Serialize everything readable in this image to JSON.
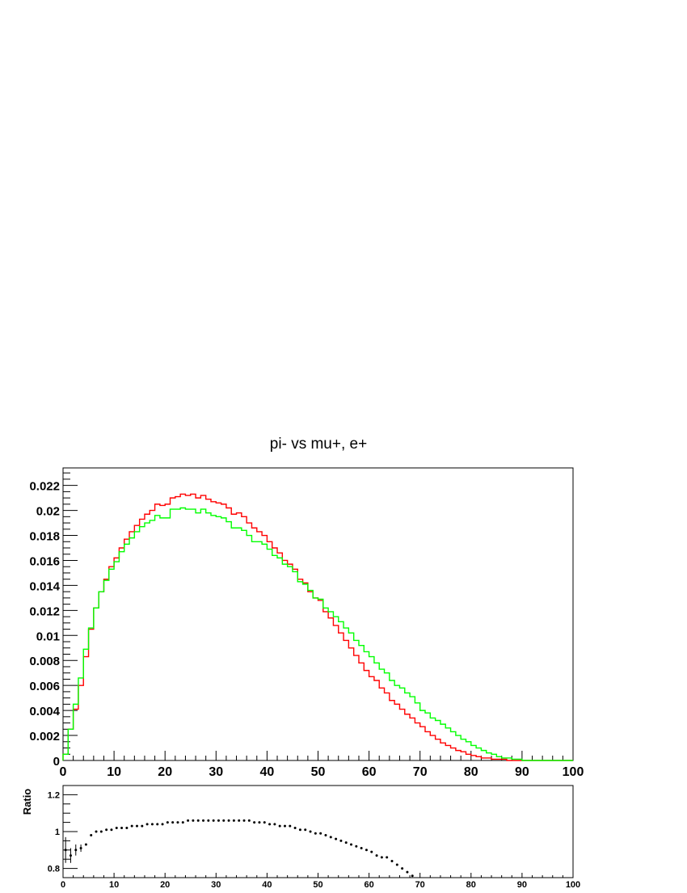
{
  "chart_data": [
    {
      "type": "line",
      "title": "pi- vs mu+, e+",
      "xlabel": "",
      "ylabel": "",
      "xlim": [
        0,
        100
      ],
      "ylim": [
        0,
        0.0234
      ],
      "grid": false,
      "x_tick_labels": [
        "0",
        "10",
        "20",
        "30",
        "40",
        "50",
        "60",
        "70",
        "80",
        "90",
        "100"
      ],
      "y_tick_labels": [
        "0",
        "0.002",
        "0.004",
        "0.006",
        "0.008",
        "0.01",
        "0.012",
        "0.014",
        "0.016",
        "0.018",
        "0.02",
        "0.022"
      ],
      "bin_edges_start": 0,
      "bin_width": 1,
      "series": [
        {
          "color": "#ff0000",
          "values": [
            0.0005,
            0.0025,
            0.0041,
            0.006,
            0.0083,
            0.0105,
            0.0122,
            0.0135,
            0.0145,
            0.0155,
            0.0162,
            0.017,
            0.0177,
            0.0183,
            0.0188,
            0.0193,
            0.0197,
            0.02,
            0.0205,
            0.0204,
            0.0205,
            0.021,
            0.0211,
            0.0213,
            0.0212,
            0.0213,
            0.021,
            0.0212,
            0.0209,
            0.0207,
            0.0206,
            0.0205,
            0.0202,
            0.0197,
            0.0198,
            0.0195,
            0.019,
            0.0186,
            0.0183,
            0.018,
            0.0175,
            0.017,
            0.0166,
            0.016,
            0.0157,
            0.0153,
            0.0145,
            0.0142,
            0.0135,
            0.013,
            0.0128,
            0.0119,
            0.0114,
            0.0108,
            0.0102,
            0.0096,
            0.009,
            0.0084,
            0.0078,
            0.0072,
            0.0067,
            0.0064,
            0.0058,
            0.0054,
            0.0048,
            0.0045,
            0.0041,
            0.0037,
            0.0034,
            0.003,
            0.0027,
            0.0023,
            0.002,
            0.0017,
            0.0014,
            0.0012,
            0.001,
            0.0008,
            0.0007,
            0.0005,
            0.0004,
            0.0003,
            0.0002,
            0.0002,
            0.0001,
            0.0001,
            0.0001,
            0,
            0,
            0,
            0,
            0,
            0,
            0,
            0,
            0,
            0,
            0,
            0,
            0
          ]
        },
        {
          "color": "#00ff00",
          "values": [
            0.0005,
            0.0025,
            0.0045,
            0.0066,
            0.0089,
            0.0106,
            0.0122,
            0.0135,
            0.0144,
            0.0153,
            0.0159,
            0.0167,
            0.0173,
            0.0178,
            0.0183,
            0.0187,
            0.019,
            0.0192,
            0.0196,
            0.0194,
            0.0194,
            0.0201,
            0.0201,
            0.0202,
            0.0201,
            0.0201,
            0.0198,
            0.0201,
            0.0198,
            0.0196,
            0.0195,
            0.0194,
            0.0191,
            0.0186,
            0.0186,
            0.0184,
            0.018,
            0.0175,
            0.0175,
            0.0173,
            0.0169,
            0.0164,
            0.0162,
            0.0157,
            0.0155,
            0.0151,
            0.0143,
            0.0141,
            0.0136,
            0.013,
            0.0129,
            0.0122,
            0.0119,
            0.0115,
            0.0111,
            0.0106,
            0.0102,
            0.0096,
            0.0092,
            0.0087,
            0.0083,
            0.0078,
            0.0073,
            0.007,
            0.0064,
            0.006,
            0.0058,
            0.0054,
            0.0051,
            0.0046,
            0.004,
            0.0038,
            0.0034,
            0.0032,
            0.0029,
            0.0026,
            0.0023,
            0.002,
            0.0017,
            0.0015,
            0.0012,
            0.001,
            0.0008,
            0.0006,
            0.0005,
            0.0003,
            0.0002,
            0.0002,
            0.0001,
            0.0001,
            0,
            0,
            0,
            0,
            0,
            0,
            0,
            0,
            0,
            0
          ]
        }
      ]
    },
    {
      "type": "scatter",
      "title": "",
      "xlabel": "",
      "ylabel": "Ratio",
      "xlim": [
        0,
        100
      ],
      "ylim": [
        0.75,
        1.25
      ],
      "grid": false,
      "x_tick_labels": [
        "0",
        "10",
        "20",
        "30",
        "40",
        "50",
        "60",
        "70",
        "80",
        "90",
        "100"
      ],
      "y_tick_labels": [
        "0.8",
        "1",
        "1.2"
      ],
      "series": [
        {
          "color": "#000000",
          "x": [
            0.5,
            1.5,
            2.5,
            3.5,
            4.5,
            5.5,
            6.5,
            7.5,
            8.5,
            9.5,
            10.5,
            11.5,
            12.5,
            13.5,
            14.5,
            15.5,
            16.5,
            17.5,
            18.5,
            19.5,
            20.5,
            21.5,
            22.5,
            23.5,
            24.5,
            25.5,
            26.5,
            27.5,
            28.5,
            29.5,
            30.5,
            31.5,
            32.5,
            33.5,
            34.5,
            35.5,
            36.5,
            37.5,
            38.5,
            39.5,
            40.5,
            41.5,
            42.5,
            43.5,
            44.5,
            45.5,
            46.5,
            47.5,
            48.5,
            49.5,
            50.5,
            51.5,
            52.5,
            53.5,
            54.5,
            55.5,
            56.5,
            57.5,
            58.5,
            59.5,
            60.5,
            61.5,
            62.5,
            63.5,
            64.5,
            65.5,
            66.5,
            67.5,
            68.5
          ],
          "y": [
            0.9,
            0.87,
            0.9,
            0.91,
            0.93,
            0.98,
            1.0,
            1.0,
            1.01,
            1.01,
            1.02,
            1.02,
            1.02,
            1.03,
            1.03,
            1.03,
            1.04,
            1.04,
            1.04,
            1.04,
            1.05,
            1.05,
            1.05,
            1.05,
            1.06,
            1.06,
            1.06,
            1.06,
            1.06,
            1.06,
            1.06,
            1.06,
            1.06,
            1.06,
            1.06,
            1.06,
            1.06,
            1.05,
            1.05,
            1.05,
            1.04,
            1.04,
            1.03,
            1.03,
            1.03,
            1.02,
            1.01,
            1.01,
            1.0,
            0.99,
            0.99,
            0.98,
            0.97,
            0.96,
            0.95,
            0.94,
            0.93,
            0.92,
            0.91,
            0.9,
            0.89,
            0.87,
            0.86,
            0.86,
            0.84,
            0.82,
            0.8,
            0.78,
            0.76
          ],
          "err": [
            0.07,
            0.04,
            0.03,
            0.02,
            0.01,
            0.01,
            0.01,
            0.01,
            0.01,
            0.01,
            0.01,
            0.01,
            0.01,
            0.01,
            0.01,
            0.01,
            0.01,
            0.01,
            0.01,
            0.01,
            0.01,
            0.01,
            0.01,
            0.01,
            0.01,
            0.01,
            0.01,
            0.01,
            0.01,
            0.01,
            0.01,
            0.01,
            0.01,
            0.01,
            0.01,
            0.01,
            0.01,
            0.01,
            0.01,
            0.01,
            0.01,
            0.01,
            0.01,
            0.01,
            0.01,
            0.01,
            0.01,
            0.01,
            0.01,
            0.01,
            0.01,
            0.01,
            0.01,
            0.01,
            0.01,
            0.01,
            0.01,
            0.01,
            0.01,
            0.01,
            0.01,
            0.01,
            0.01,
            0.01,
            0.01,
            0.01,
            0.01,
            0.01,
            0.01
          ]
        }
      ]
    }
  ]
}
